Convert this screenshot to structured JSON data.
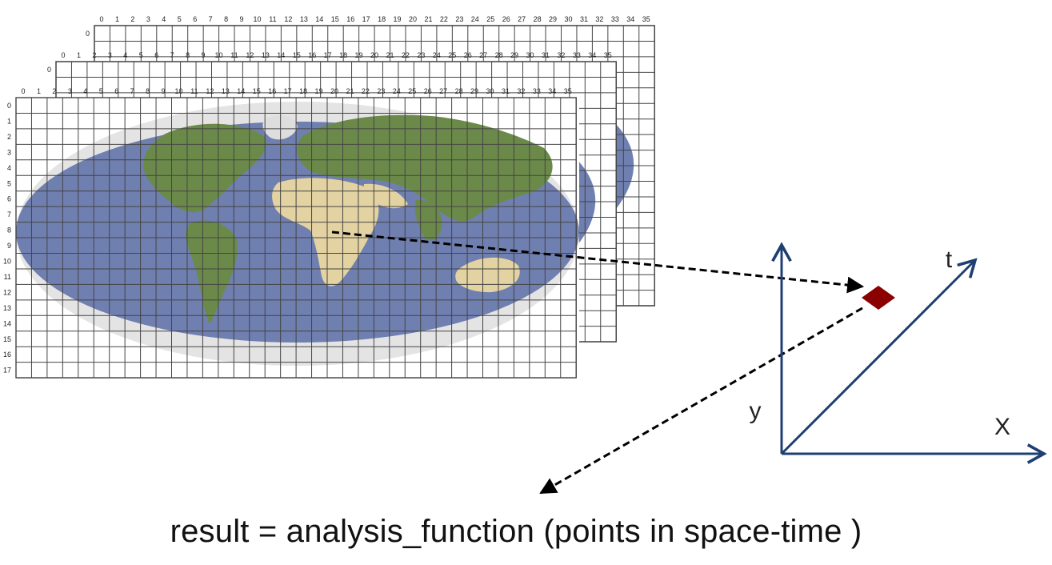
{
  "grid": {
    "column_labels": [
      "0",
      "1",
      "2",
      "3",
      "4",
      "5",
      "6",
      "7",
      "8",
      "9",
      "10",
      "11",
      "12",
      "13",
      "14",
      "15",
      "16",
      "17",
      "18",
      "19",
      "20",
      "21",
      "22",
      "23",
      "24",
      "25",
      "26",
      "27",
      "28",
      "29",
      "30",
      "31",
      "32",
      "33",
      "34",
      "35"
    ],
    "row_labels": [
      "0",
      "1",
      "2",
      "3",
      "4",
      "5",
      "6",
      "7",
      "8",
      "9",
      "10",
      "11",
      "12",
      "13",
      "14",
      "15",
      "16",
      "17"
    ],
    "layer_count": 3,
    "back_layer_row_label": "0"
  },
  "axes": {
    "y_label": "y",
    "x_label": "X",
    "t_label": "t",
    "axis_color": "#1f3f73"
  },
  "marker": {
    "color": "#8b0000",
    "shape": "diamond"
  },
  "colors": {
    "ocean": "#6f7fb0",
    "land_green": "#6b8a4a",
    "land_tan": "#e3d2a2",
    "ice": "#e4e4e4",
    "grid_line": "#444444"
  },
  "caption": "result = analysis_function (points in space-time )"
}
